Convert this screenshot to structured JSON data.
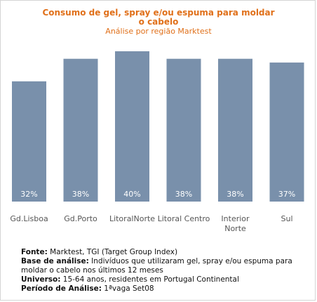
{
  "chart_data": {
    "type": "bar",
    "title_line1": "Consumo de gel, spray e/ou espuma para moldar",
    "title_line2": "o cabelo",
    "subtitle": "Análise por região Marktest",
    "categories": [
      "Gd.Lisboa",
      "Gd.Porto",
      "LitoralNorte",
      "Litoral Centro",
      [
        "Interior",
        "Norte"
      ],
      "Sul"
    ],
    "values": [
      32,
      38,
      40,
      38,
      38,
      37
    ],
    "value_labels": [
      "32%",
      "38%",
      "40%",
      "38%",
      "38%",
      "37%"
    ],
    "ylim": [
      0,
      40
    ],
    "grid": false,
    "legend": "none",
    "bar_color": "#7990ab",
    "label_color": "#ffffff",
    "category_color": "#555555",
    "title_color": "#e0701a"
  },
  "footer": {
    "fonte_label": "Fonte:",
    "fonte_text": "Marktest, TGI (Target Group Index)",
    "base_label": "Base de análise:",
    "base_text": "Indivíduos que utilizaram gel, spray e/ou espuma para moldar o cabelo nos últimos 12 meses",
    "universo_label": "Universo:",
    "universo_text": "15-64 anos, residentes em Portugal Continental",
    "periodo_label": "Período de Análise:",
    "periodo_text": "1ªvaga Set08"
  }
}
